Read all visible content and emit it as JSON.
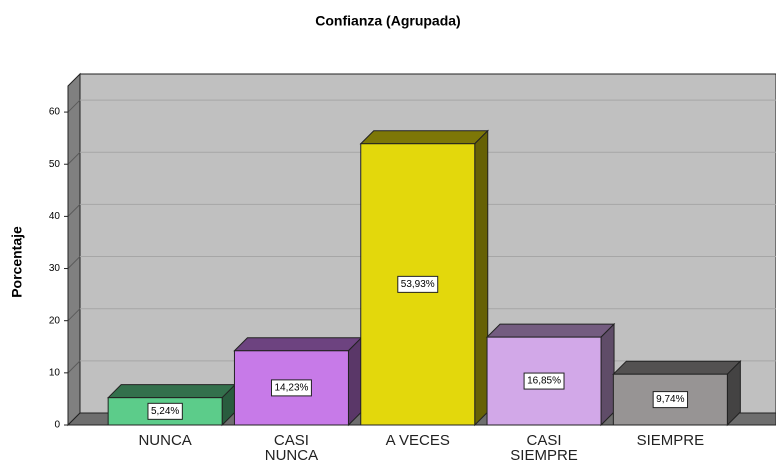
{
  "chart_data": {
    "type": "bar",
    "title": "Confianza (Agrupada)",
    "y_label": "Porcentaje",
    "categories": [
      "NUNCA",
      "CASI NUNCA",
      "A VECES",
      "CASI SIEMPRE",
      "SIEMPRE"
    ],
    "values": [
      5.24,
      14.23,
      53.93,
      16.85,
      9.74
    ],
    "value_labels": [
      "5,24%",
      "14,23%",
      "53,93%",
      "16,85%",
      "9,74%"
    ],
    "colors": [
      "#5ccc8a",
      "#c77ae8",
      "#e3d80c",
      "#d2a8e8",
      "#979494"
    ],
    "ylim": [
      0,
      65
    ],
    "yticks": [
      0,
      10,
      20,
      30,
      40,
      50,
      60
    ],
    "grid": true
  }
}
